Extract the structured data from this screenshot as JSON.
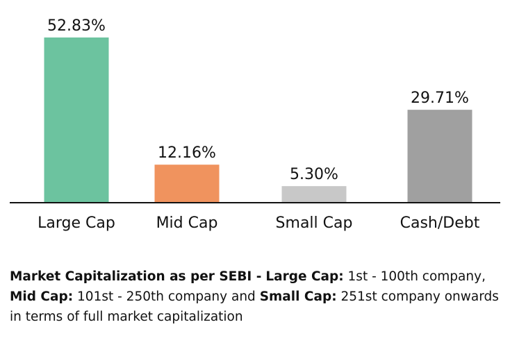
{
  "chart_data": {
    "type": "bar",
    "categories": [
      "Large Cap",
      "Mid Cap",
      "Small Cap",
      "Cash/Debt"
    ],
    "values": [
      52.83,
      12.16,
      5.3,
      29.71
    ],
    "data_labels": [
      "52.83%",
      "12.16%",
      "5.30%",
      "29.71%"
    ],
    "colors": [
      "#6cc39f",
      "#f0935e",
      "#c8c8c8",
      "#a0a0a0"
    ],
    "ylim": [
      0,
      52.83
    ],
    "grid": false,
    "legend": "none"
  },
  "footnote": {
    "heading": "Market Capitalization as per SEBI -",
    "large_cap_label": "Large Cap:",
    "large_cap_text": "1st - 100th company,",
    "mid_cap_label": "Mid Cap:",
    "mid_cap_text": "101st - 250th company and",
    "small_cap_label": "Small Cap:",
    "small_cap_text": "251st company onwards in terms of full market capitalization"
  }
}
